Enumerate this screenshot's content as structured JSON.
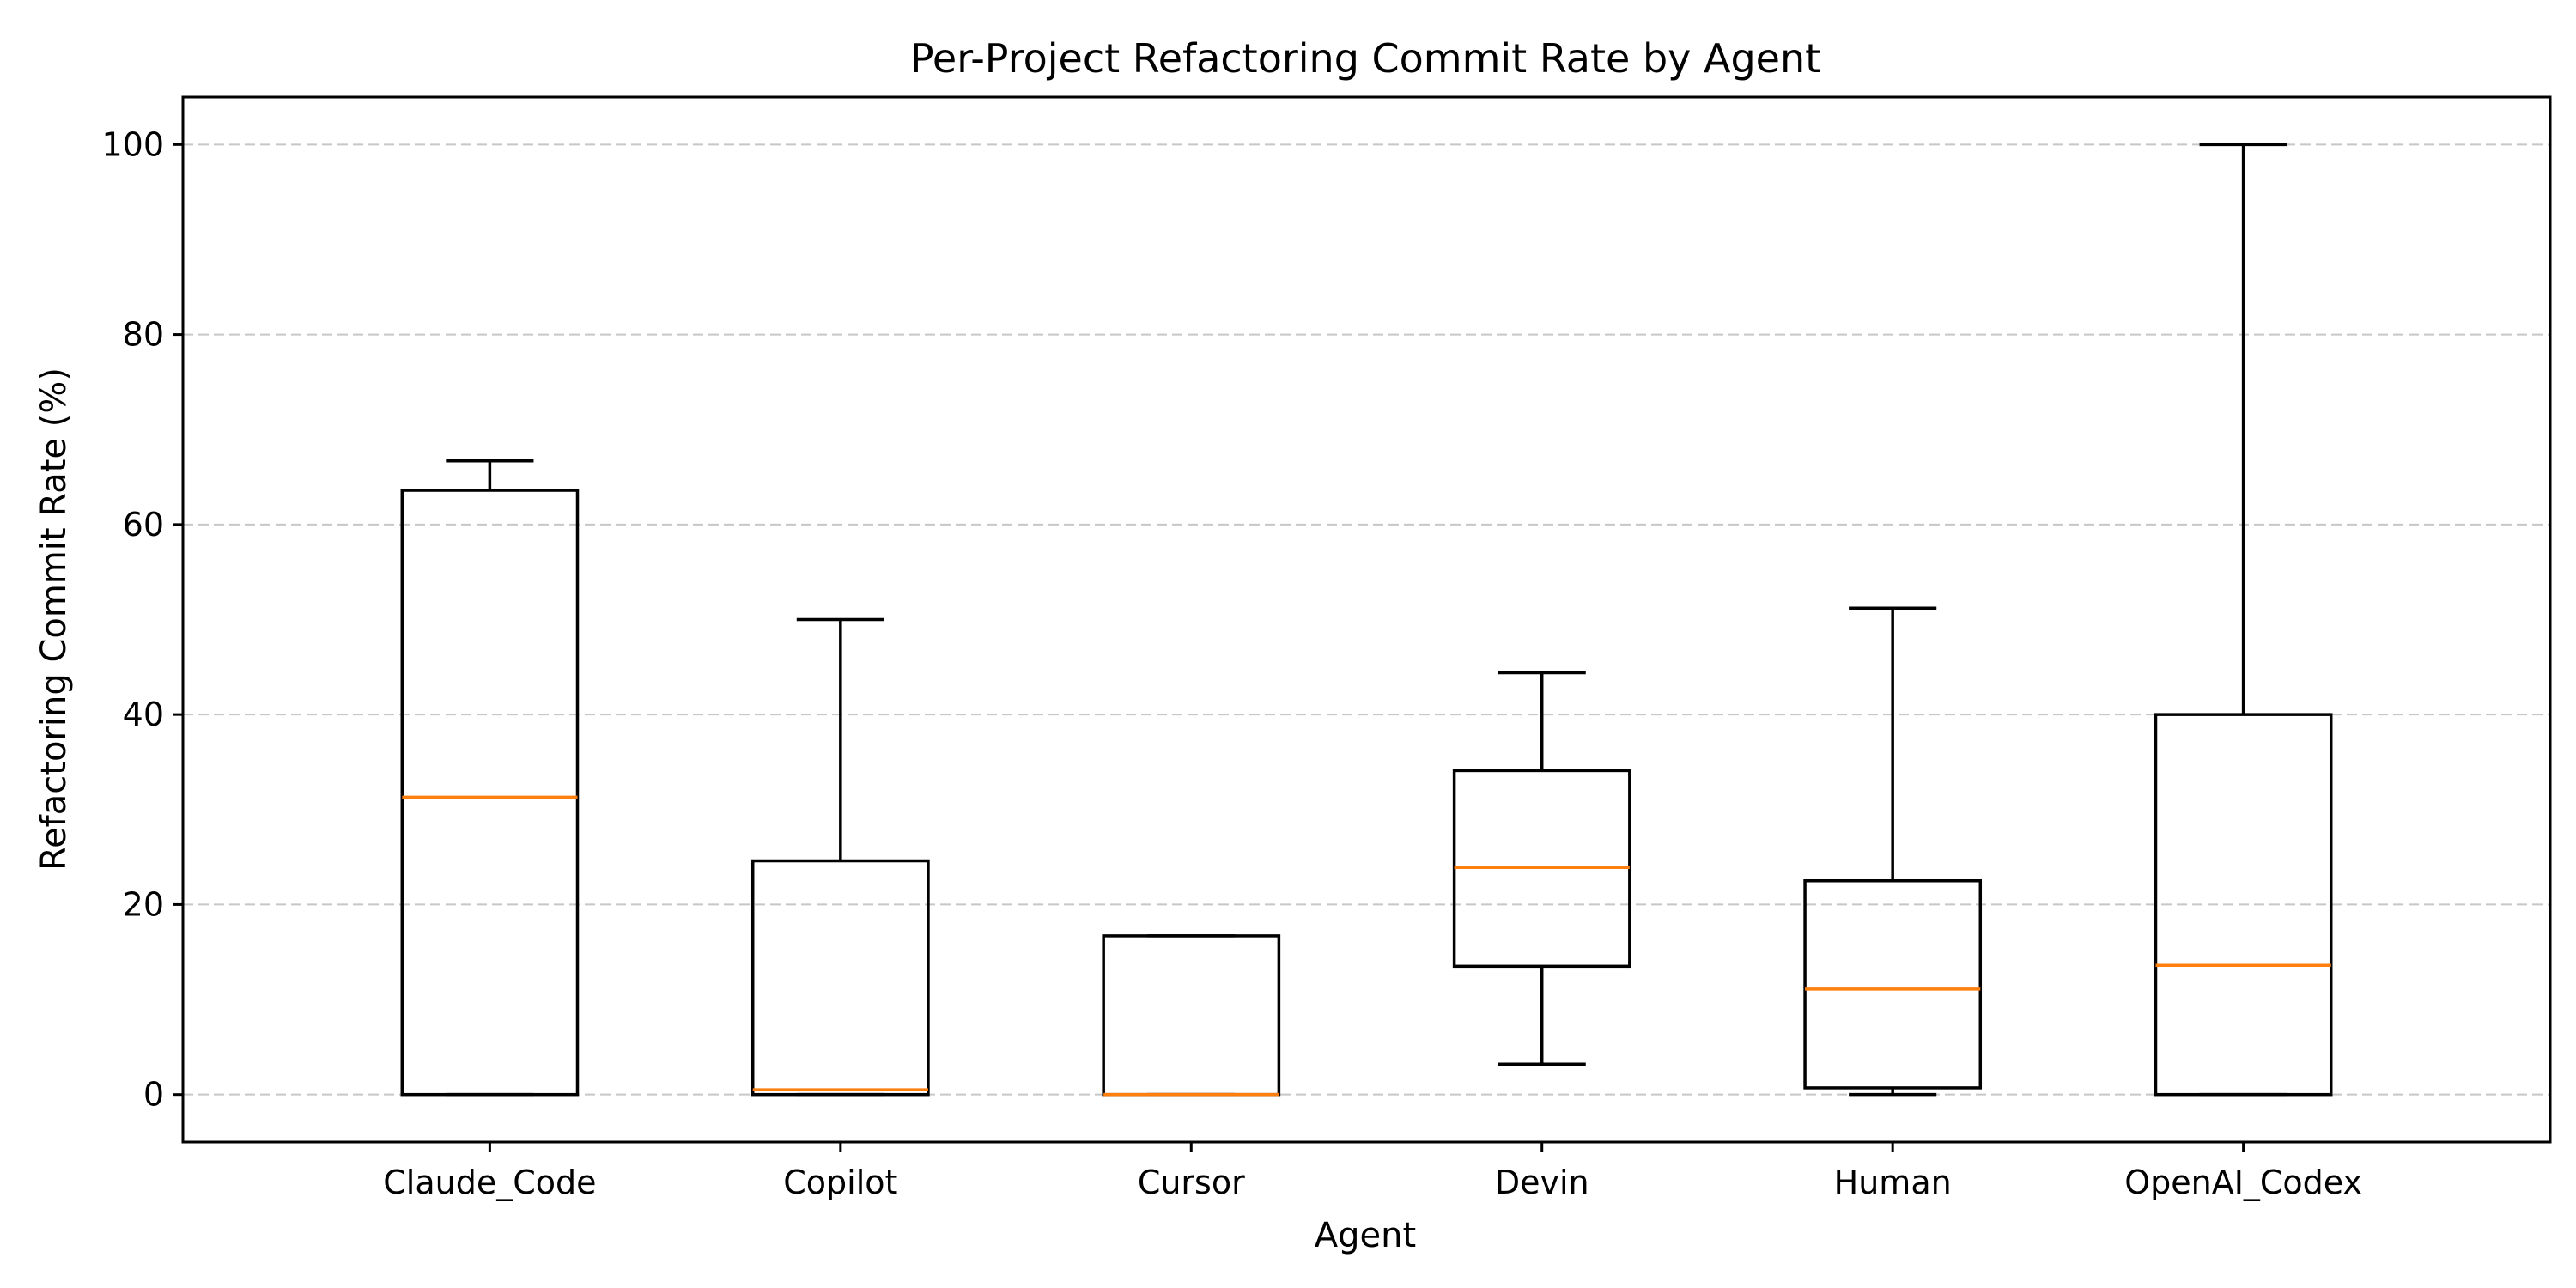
{
  "chart_data": {
    "type": "box",
    "title": "Per-Project Refactoring Commit Rate by Agent",
    "xlabel": "Agent",
    "ylabel": "Refactoring Commit Rate (%)",
    "ylim": [
      -5,
      105
    ],
    "yticks": [
      0,
      20,
      40,
      60,
      80,
      100
    ],
    "grid": "y-dashed",
    "categories": [
      "Claude_Code",
      "Copilot",
      "Cursor",
      "Devin",
      "Human",
      "OpenAI_Codex"
    ],
    "boxes": [
      {
        "name": "Claude_Code",
        "whisker_low": 0,
        "q1": 0,
        "median": 31.3,
        "q3": 63.6,
        "whisker_high": 66.7
      },
      {
        "name": "Copilot",
        "whisker_low": 0,
        "q1": 0,
        "median": 0.5,
        "q3": 24.6,
        "whisker_high": 50.0
      },
      {
        "name": "Cursor",
        "whisker_low": 0,
        "q1": 0,
        "median": 0,
        "q3": 16.7,
        "whisker_high": 16.7
      },
      {
        "name": "Devin",
        "whisker_low": 3.2,
        "q1": 13.5,
        "median": 23.9,
        "q3": 34.1,
        "whisker_high": 44.4
      },
      {
        "name": "Human",
        "whisker_low": 0,
        "q1": 0.7,
        "median": 11.1,
        "q3": 22.5,
        "whisker_high": 51.2
      },
      {
        "name": "OpenAI_Codex",
        "whisker_low": 0,
        "q1": 0,
        "median": 13.6,
        "q3": 40.0,
        "whisker_high": 100.0
      }
    ],
    "colors": {
      "box": "#000000",
      "median": "#ff7f0e",
      "grid": "#b0b0b0"
    }
  }
}
